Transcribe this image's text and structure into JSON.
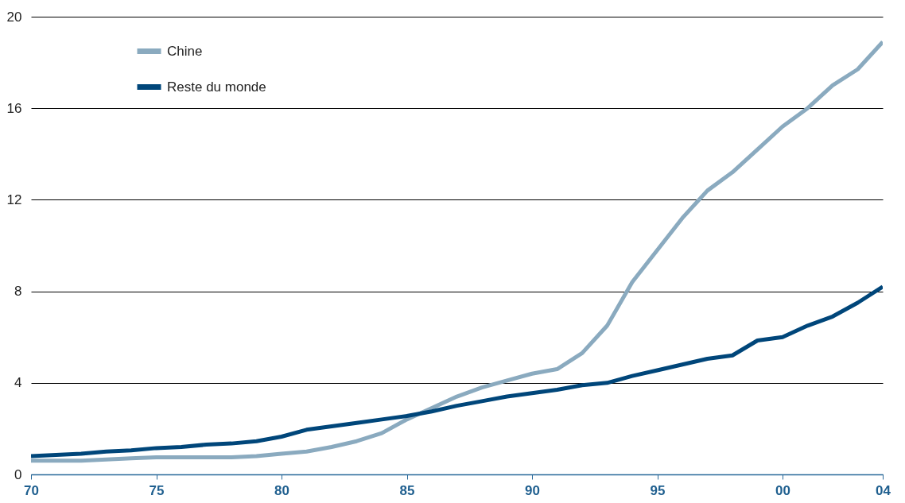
{
  "chart_data": {
    "type": "line",
    "x": [
      1970,
      1971,
      1972,
      1973,
      1974,
      1975,
      1976,
      1977,
      1978,
      1979,
      1980,
      1981,
      1982,
      1983,
      1984,
      1985,
      1986,
      1987,
      1988,
      1989,
      1990,
      1991,
      1992,
      1993,
      1994,
      1995,
      1996,
      1997,
      1998,
      1999,
      2000,
      2001,
      2002,
      2003,
      2004
    ],
    "series": [
      {
        "name": "Chine",
        "color": "#8aaabf",
        "values": [
          0.6,
          0.6,
          0.6,
          0.65,
          0.7,
          0.75,
          0.75,
          0.75,
          0.75,
          0.8,
          0.9,
          1.0,
          1.2,
          1.45,
          1.8,
          2.4,
          2.9,
          3.4,
          3.8,
          4.1,
          4.4,
          4.6,
          5.3,
          6.5,
          8.4,
          9.8,
          11.2,
          12.4,
          13.2,
          14.2,
          15.2,
          16.0,
          17.0,
          17.7,
          18.9
        ]
      },
      {
        "name": "Reste du monde",
        "color": "#00467a",
        "values": [
          0.8,
          0.85,
          0.9,
          1.0,
          1.05,
          1.15,
          1.2,
          1.3,
          1.35,
          1.45,
          1.65,
          1.95,
          2.1,
          2.25,
          2.4,
          2.55,
          2.75,
          3.0,
          3.2,
          3.4,
          3.55,
          3.7,
          3.9,
          4.0,
          4.3,
          4.55,
          4.8,
          5.05,
          5.2,
          5.85,
          6.0,
          6.5,
          6.9,
          7.5,
          8.2
        ]
      }
    ],
    "xlim": [
      1970,
      2004
    ],
    "xticks": [
      {
        "value": 1970,
        "label": "70"
      },
      {
        "value": 1975,
        "label": "75"
      },
      {
        "value": 1980,
        "label": "80"
      },
      {
        "value": 1985,
        "label": "85"
      },
      {
        "value": 1990,
        "label": "90"
      },
      {
        "value": 1995,
        "label": "95"
      },
      {
        "value": 2000,
        "label": "00"
      },
      {
        "value": 2004,
        "label": "04"
      }
    ],
    "ylim": [
      0,
      20
    ],
    "yticks": [
      0,
      4,
      8,
      12,
      16,
      20
    ],
    "grid": "y",
    "legend": "top left",
    "line_style": "solid"
  }
}
